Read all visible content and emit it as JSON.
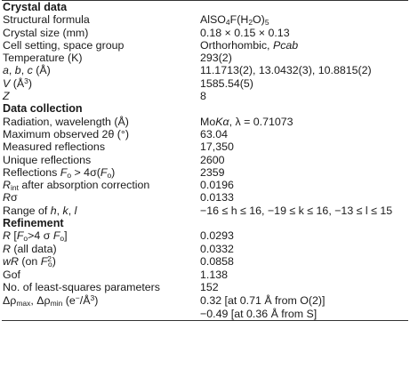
{
  "sections": {
    "crystal": "Crystal data",
    "collection": "Data collection",
    "refinement": "Refinement"
  },
  "rows": {
    "formula": {
      "label": "Structural formula",
      "v1": "AlSO",
      "v2": "F(H",
      "v3": "O)",
      "s1": "4",
      "s2": "2",
      "s3": "5"
    },
    "size": {
      "label": "Crystal size (mm)",
      "value": "0.18 × 0.15 × 0.13"
    },
    "setting": {
      "label": "Cell setting, space group",
      "value": "Orthorhombic, ",
      "value_it": "Pcab"
    },
    "temp": {
      "label": "Temperature (K)",
      "value": "293(2)"
    },
    "abc": {
      "a": "a",
      "b": "b",
      "c": "c",
      "sep": ", ",
      "unit": " (Å)",
      "value": "11.1713(2), 13.0432(3), 10.8815(2)"
    },
    "vol": {
      "v": "V",
      "unit": " (Å",
      "sup": "3",
      "close": ")",
      "value": "1585.54(5)"
    },
    "z": {
      "label": "Z",
      "value": "8"
    },
    "radiation": {
      "label": "Radiation, wavelength (Å)",
      "v1": "Mo",
      "v2": "Kα",
      "v3": ", λ = 0.71073"
    },
    "theta": {
      "label": "Maximum observed 2θ (°)",
      "value": "63.04"
    },
    "measured": {
      "label": "Measured reflections",
      "value": "17,350"
    },
    "unique": {
      "label": "Unique reflections",
      "value": "2600"
    },
    "refl": {
      "l1": "Reflections ",
      "F": "F",
      "o": "o",
      "l2": " > 4σ(",
      "l3": ")",
      "value": "2359"
    },
    "rint": {
      "R": "R",
      "sub": "int",
      "rest": " after absorption correction",
      "value": "0.0196"
    },
    "rsigma": {
      "R": "R",
      "sig": "σ",
      "value": "0.0133"
    },
    "range": {
      "l1": "Range of ",
      "h": "h",
      "k": "k",
      "l": "l",
      "sep": ", ",
      "value": "−16 ≤ h ≤ 16, −19 ≤ k ≤ 16, −13 ≤ l ≤ 15"
    },
    "r_obs": {
      "R": "R",
      "l1": " [",
      "F": "F",
      "o": "o",
      "l2": ">4 σ ",
      "l3": "]",
      "value": "0.0293"
    },
    "r_all": {
      "R": "R",
      "rest": " (all data)",
      "value": "0.0332"
    },
    "wr": {
      "wR": "wR",
      "l1": " (on ",
      "F": "F",
      "sup": "2",
      "o": "o",
      "l2": ")",
      "value": "0.0858"
    },
    "gof": {
      "label": "Gof",
      "value": "1.138"
    },
    "params": {
      "label": "No. of least-squares parameters",
      "value": "152"
    },
    "drho": {
      "d1": "Δρ",
      "max": "max",
      "sep": ", Δρ",
      "min": "min",
      "u1": " (e",
      "minus": "−",
      "u2": "/Å",
      "cube": "3",
      "u3": ")",
      "value1": "0.32 [at 0.71 Å from O(2)]",
      "value2": "−0.49 [at 0.36 Å from S]"
    }
  }
}
